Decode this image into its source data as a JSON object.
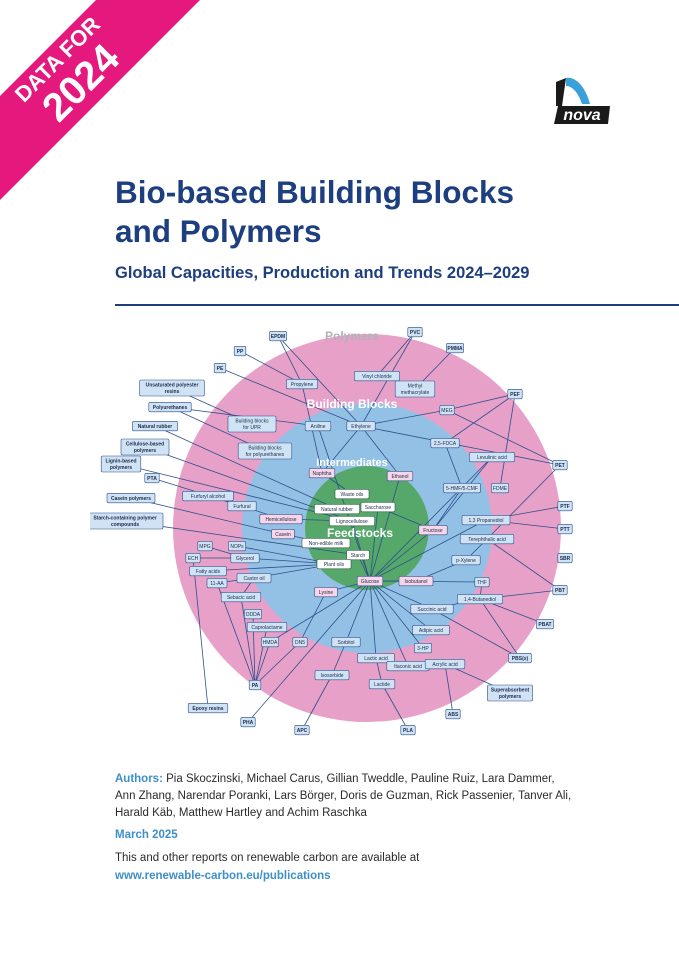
{
  "banner": {
    "line1": "DATA FOR",
    "line2": "2024",
    "color": "#e5187d"
  },
  "logo": {
    "text": "nova",
    "icon": "nova-logo-icon",
    "color": "#1a1a1a",
    "accent": "#3aa0dc"
  },
  "title_lines": [
    "Bio-based Building Blocks",
    "and Polymers"
  ],
  "subtitle": "Global Capacities, Production and Trends 2024–2029",
  "diagram": {
    "rings": {
      "polymers": "Polymers",
      "building_blocks": "Building Blocks",
      "intermediates": "Intermediates",
      "feedstocks": "Feedstocks"
    },
    "colors": {
      "polymers_ring": "#e7a0c8",
      "intermediates_ring": "#93c1e6",
      "feedstocks_core": "#55a86a",
      "box": "#cfe3f5",
      "box_border": "#2e4f8a"
    },
    "polymers": [
      "EPDM",
      "PVC",
      "PP",
      "PMMA",
      "PE",
      "Unsaturated polyester resins",
      "PEF",
      "Polyurethanes",
      "Natural rubber",
      "Cellulose-based polymers",
      "PET",
      "Lignin-based polymers",
      "PTA",
      "PTF",
      "Casein polymers",
      "PTT",
      "Starch-containing polymer compounds",
      "SBR",
      "PBT",
      "PBAT",
      "PBS(x)",
      "Superabsorbent polymers",
      "ABS",
      "PLA",
      "APC",
      "PHA",
      "Epoxy resins",
      "PA"
    ],
    "building_blocks": [
      "Propylene",
      "Vinyl chloride",
      "Methyl methacrylate",
      "Building blocks for UPR",
      "Building blocks for polyurethanes",
      "Aniline",
      "Ethylene",
      "MEG",
      "2,5-FDCA",
      "Levulinic acid",
      "5-HMF/5-CMF",
      "FDME",
      "Furfuryl alcohol",
      "Furfural",
      "1,3 Propanediol",
      "Terephthalic acid",
      "p-Xylene",
      "THF",
      "1,4-Butanediol",
      "Succinic acid",
      "MPG",
      "NOPs",
      "ECH",
      "Glycerol",
      "Fatty acids",
      "11-AA",
      "Castor oil",
      "Sebacic acid",
      "DDDA",
      "Caprolactame",
      "HMDA",
      "DN5",
      "Sorbitol",
      "Lactic acid",
      "Lactide",
      "Itaconic acid",
      "Acrylic acid",
      "3-HP",
      "Adipic acid",
      "Isosorbide"
    ],
    "intermediates": [
      "Naphtha",
      "Ethanol",
      "Hemicellulose",
      "Casein",
      "Fructose",
      "Lysine",
      "Glucose",
      "Isobutanol"
    ],
    "feedstocks": [
      "Waste oils",
      "Natural rubber",
      "Saccharose",
      "Lignocellulose",
      "Non-edible milk",
      "Starch",
      "Plant oils"
    ]
  },
  "authors_label": "Authors:",
  "authors": "Pia Skoczinski, Michael Carus, Gillian Tweddle, Pauline Ruiz, Lara Dammer, Ann Zhang, Narendar Poranki, Lars Börger, Doris de Guzman, Rick Passenier, Tanver Ali, Harald Käb, Matthew Hartley and Achim Raschka",
  "date": "March 2025",
  "note": "This and other reports on renewable carbon are available at",
  "url": "www.renewable-carbon.eu/publications"
}
